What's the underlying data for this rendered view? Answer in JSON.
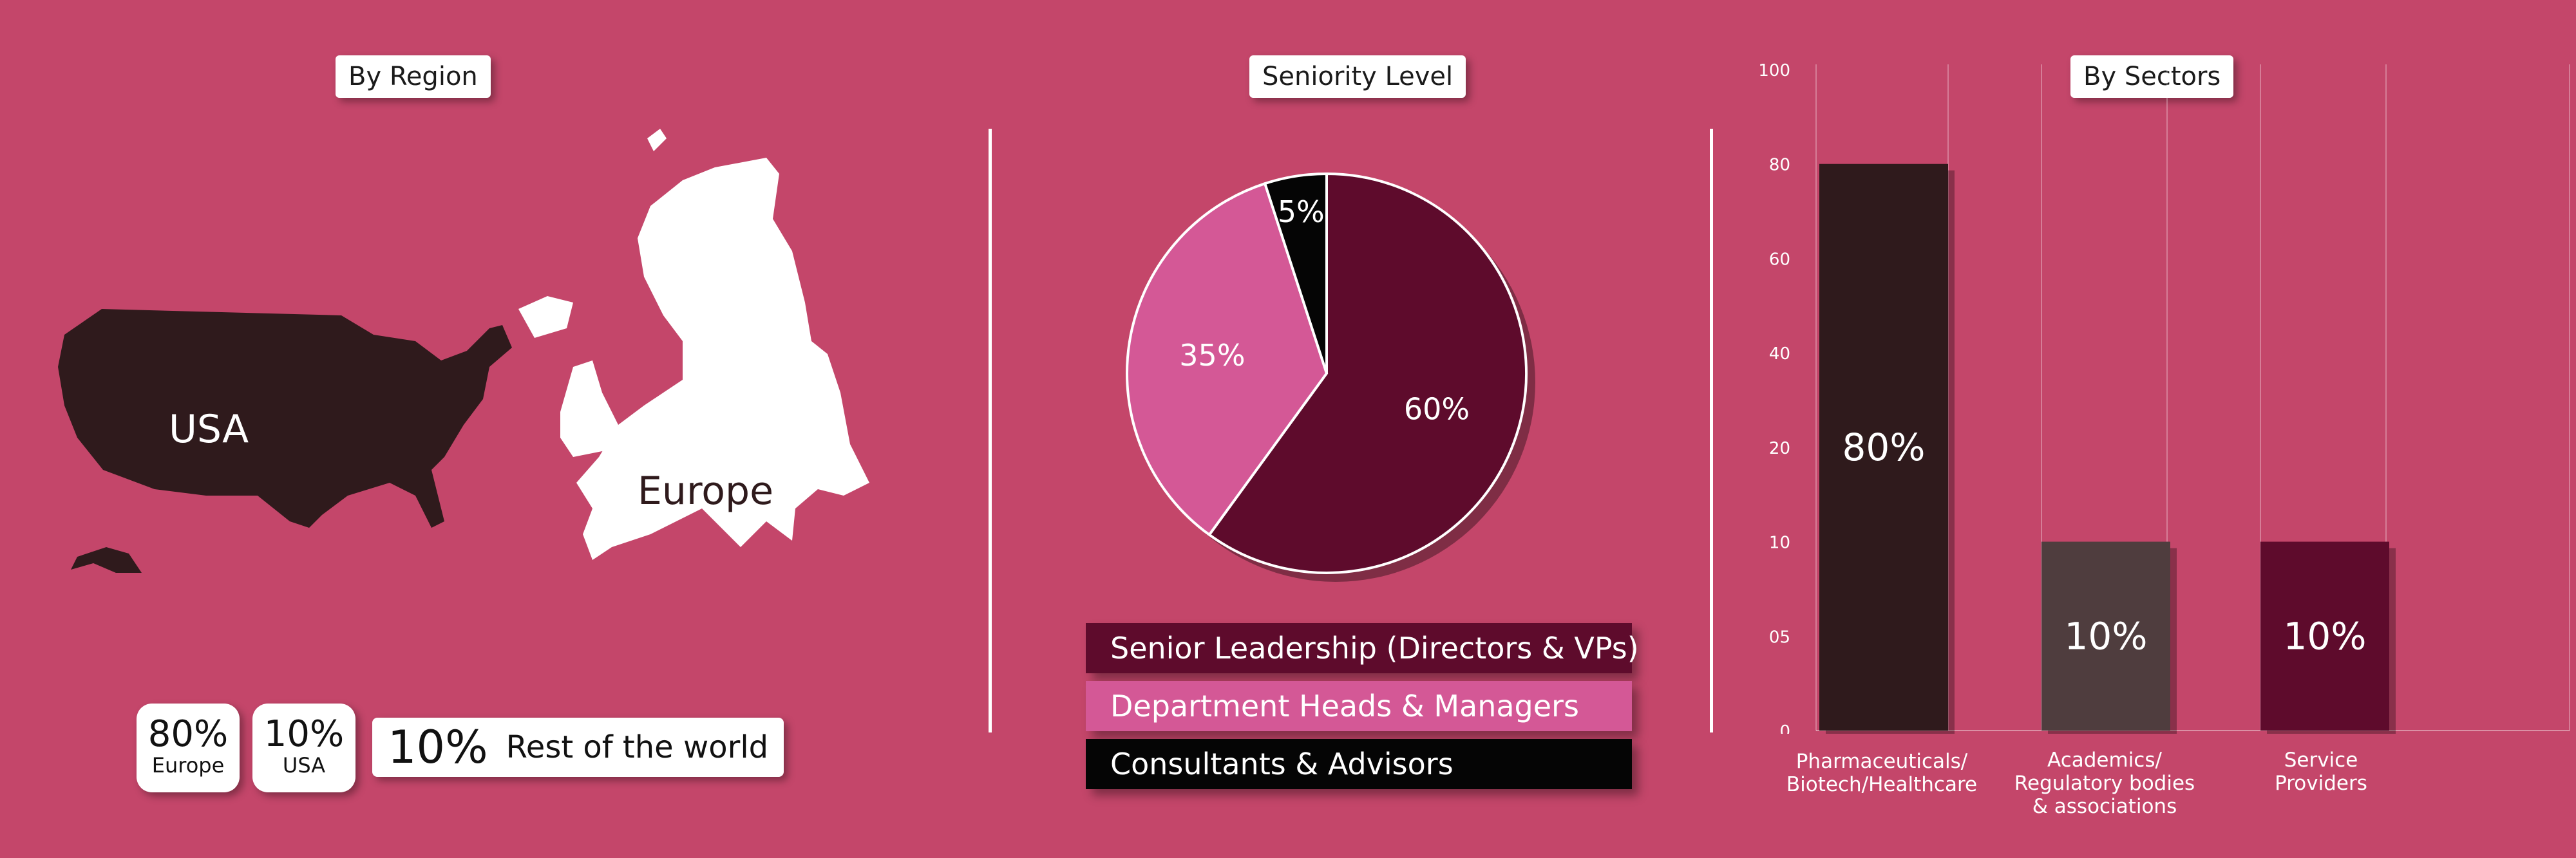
{
  "colors": {
    "background": "#c4466a",
    "dark_maroon": "#5e0b2c",
    "dark_brown": "#2f1a1c",
    "gray_brown": "#4f3d3e",
    "pink": "#d45896",
    "black": "#050505",
    "white": "#ffffff"
  },
  "region": {
    "title": "By Region",
    "usa_label": "USA",
    "europe_label": "Europe",
    "stats": [
      {
        "pct": "80%",
        "label": "Europe"
      },
      {
        "pct": "10%",
        "label": "USA"
      }
    ],
    "rest": {
      "pct": "10%",
      "label": "Rest of the world"
    }
  },
  "chart_data": [
    {
      "type": "pie",
      "title": "Seniority Level",
      "slices": [
        {
          "label": "Senior Leadership (Directors & VPs)",
          "value": 60,
          "text": "60%",
          "color": "#5e0b2c"
        },
        {
          "label": "Department Heads & Managers",
          "value": 35,
          "text": "35%",
          "color": "#d45896"
        },
        {
          "label": "Consultants & Advisors",
          "value": 5,
          "text": "5%",
          "color": "#050505"
        }
      ]
    },
    {
      "type": "bar",
      "title": "By Sectors",
      "categories": [
        [
          "Pharmaceuticals/",
          "Biotech/Healthcare"
        ],
        [
          "Academics/",
          "Regulatory bodies",
          "& associations"
        ],
        [
          "Service",
          "Providers"
        ]
      ],
      "values": [
        80,
        10,
        10
      ],
      "data_labels": [
        "80%",
        "10%",
        "10%"
      ],
      "bar_colors": [
        "#2f1a1c",
        "#4f3d3e",
        "#5e0b2c"
      ],
      "y_ticks": [
        "0",
        "05",
        "10",
        "20",
        "40",
        "60",
        "80",
        "100"
      ],
      "grid": "vertical lines"
    }
  ]
}
